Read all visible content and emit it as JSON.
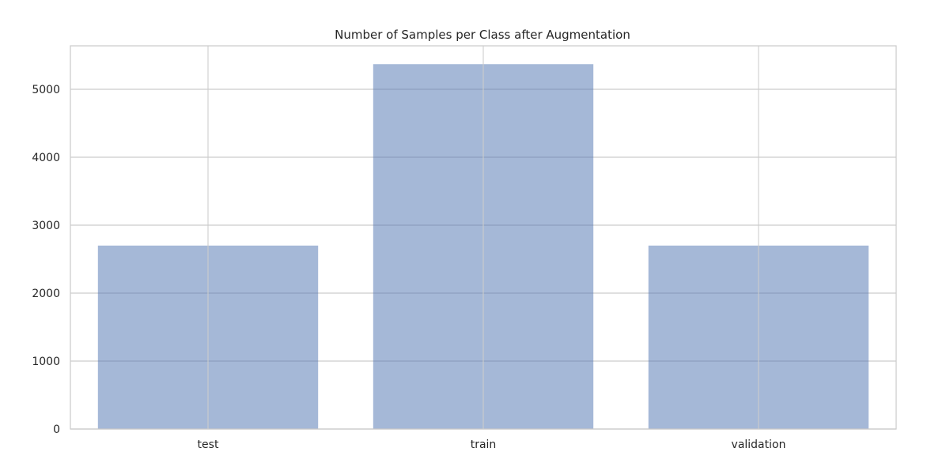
{
  "chart_data": {
    "type": "bar",
    "title": "Number of Samples per Class after Augmentation",
    "xlabel": "",
    "ylabel": "",
    "categories": [
      "test",
      "train",
      "validation"
    ],
    "values": [
      2700,
      5370,
      2700
    ],
    "ylim": [
      0,
      5640
    ],
    "yticks": [
      0,
      1000,
      2000,
      3000,
      4000,
      5000
    ],
    "grid": true,
    "legend": "none",
    "colors": {
      "bar": "#4c72b0",
      "bar_opacity": 0.5,
      "grid": "#cccccc",
      "axes_edge": "#cccccc",
      "text": "#262626"
    }
  }
}
